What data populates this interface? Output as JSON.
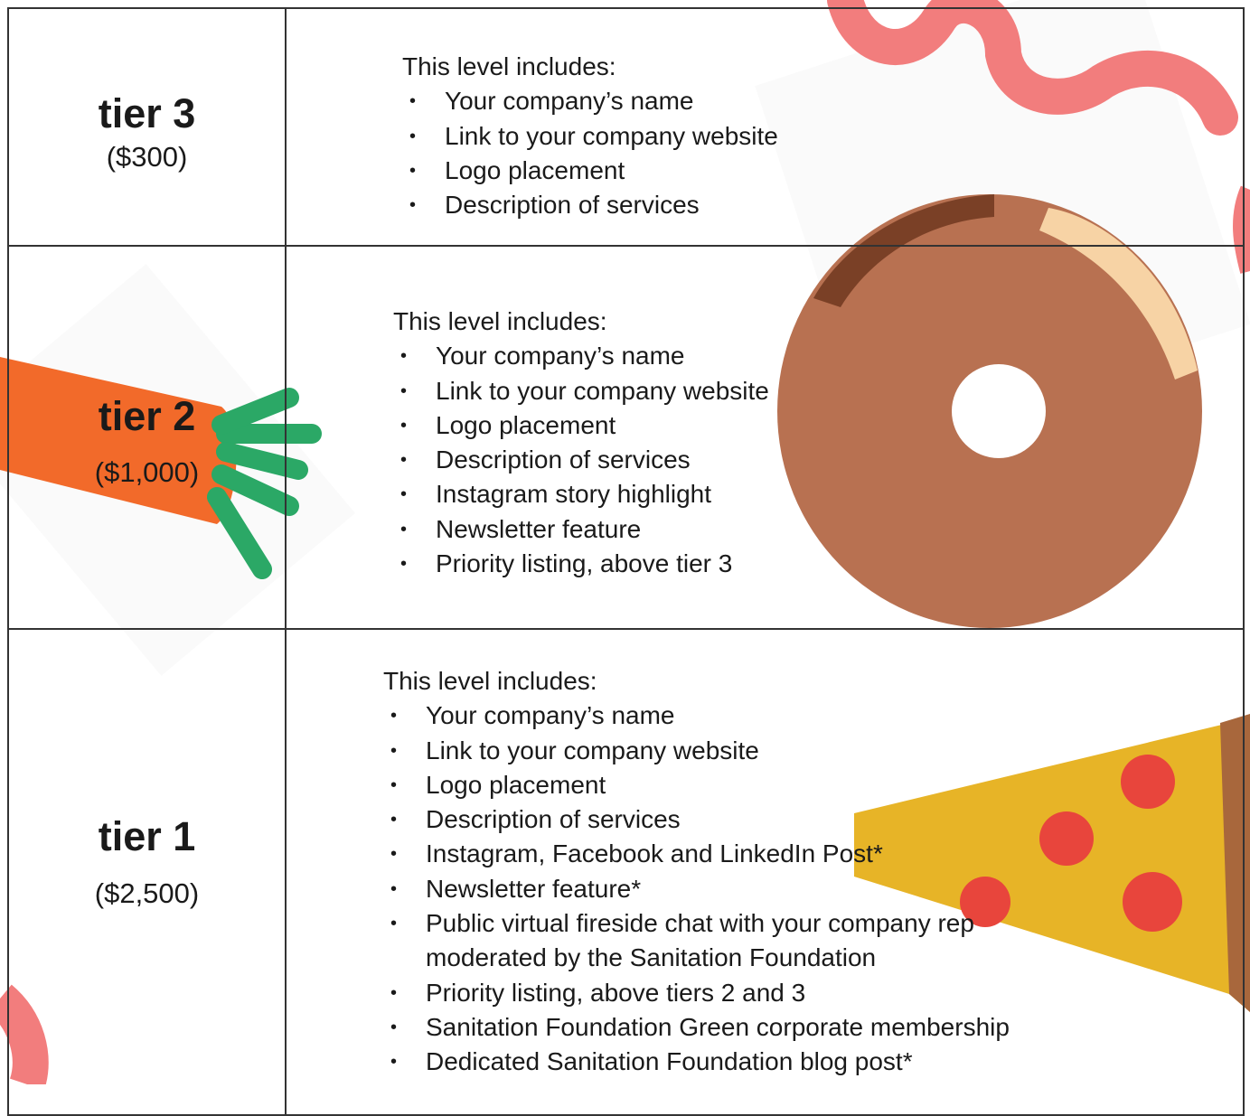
{
  "rows": [
    {
      "tier": "tier 3",
      "price": "($300)",
      "intro": "This level includes:",
      "items": [
        "Your company’s name",
        "Link to your company website",
        "Logo placement",
        "Description of services"
      ]
    },
    {
      "tier": "tier 2",
      "price": "($1,000)",
      "intro": "This level includes:",
      "items": [
        "Your company’s name",
        "Link to your company website",
        "Logo placement",
        "Description of services",
        "Instagram story highlight",
        "Newsletter feature",
        "Priority listing, above tier 3"
      ]
    },
    {
      "tier": "tier 1",
      "price": "($2,500)",
      "intro": "This level includes:",
      "items": [
        "Your company’s name",
        "Link to your company website",
        "Logo placement",
        "Description of services",
        "Instagram, Facebook and LinkedIn Post*",
        "Newsletter feature*",
        "Public virtual fireside chat with your company rep moderated by the Sanitation Foundation",
        "Priority listing, above tiers 2 and 3",
        "Sanitation Foundation Green corporate membership",
        "Dedicated Sanitation Foundation blog post*"
      ]
    }
  ]
}
